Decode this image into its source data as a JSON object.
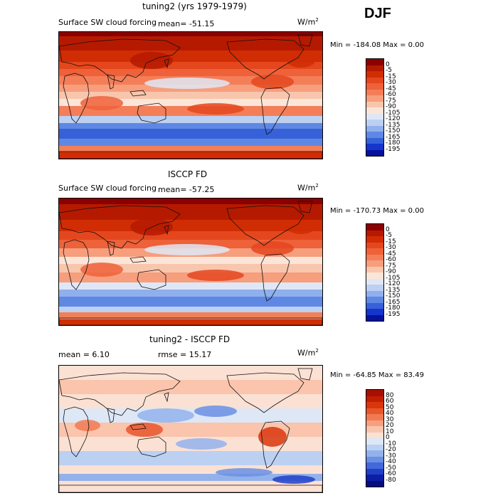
{
  "season": "DJF",
  "panels": [
    {
      "title": "tuning2 (yrs 1979-1979)",
      "left_label": "Surface SW cloud forcing",
      "mean_text": "mean=  -51.15",
      "units": "W/m",
      "units_sup": "2",
      "minmax": "Min = -184.08 Max =    0.00",
      "levels": [
        "0",
        "-5",
        "-15",
        "-30",
        "-45",
        "-60",
        "-75",
        "-90",
        "-105",
        "-120",
        "-135",
        "-150",
        "-165",
        "-180",
        "-195"
      ],
      "colors": [
        "#8b0000",
        "#b51a00",
        "#d12d04",
        "#e4471e",
        "#ee6139",
        "#f47e58",
        "#f79e7d",
        "#f8c6ad",
        "#fbe5d8",
        "#dfe7f6",
        "#bcd0f2",
        "#8fb0ec",
        "#5f88e4",
        "#3761d9",
        "#1535cc",
        "#06129c"
      ],
      "kind": "model"
    },
    {
      "title": "ISCCP FD",
      "left_label": "Surface SW cloud forcing",
      "mean_text": "mean=  -57.25",
      "units": "W/m",
      "units_sup": "2",
      "minmax": "Min = -170.73 Max =    0.00",
      "levels": [
        "0",
        "-5",
        "-15",
        "-30",
        "-45",
        "-60",
        "-75",
        "-90",
        "-105",
        "-120",
        "-135",
        "-150",
        "-165",
        "-180",
        "-195"
      ],
      "colors": [
        "#8b0000",
        "#b51a00",
        "#d12d04",
        "#e4471e",
        "#ee6139",
        "#f47e58",
        "#f79e7d",
        "#f8c6ad",
        "#fbe5d8",
        "#dfe7f6",
        "#bcd0f2",
        "#8fb0ec",
        "#5f88e4",
        "#3761d9",
        "#1535cc",
        "#06129c"
      ],
      "kind": "obs"
    },
    {
      "title": "tuning2 - ISCCP FD",
      "mean_text": "mean =    6.10",
      "rmse_text": "rmse =   15.17",
      "units": "W/m",
      "units_sup": "2",
      "minmax": "Min = -64.85 Max =  83.49",
      "levels": [
        "80",
        "60",
        "50",
        "40",
        "30",
        "20",
        "10",
        "0",
        "-10",
        "-20",
        "-30",
        "-40",
        "-50",
        "-60",
        "-80"
      ],
      "colors": [
        "#a50f04",
        "#c11e04",
        "#d9360c",
        "#e8562b",
        "#f17a53",
        "#f7a07f",
        "#fac4ad",
        "#fbe1d3",
        "#dde7f6",
        "#bcd0f2",
        "#93b2ec",
        "#6a8fe4",
        "#4368d9",
        "#2140c8",
        "#0c1ea6",
        "#040c80"
      ],
      "kind": "diff"
    }
  ]
}
